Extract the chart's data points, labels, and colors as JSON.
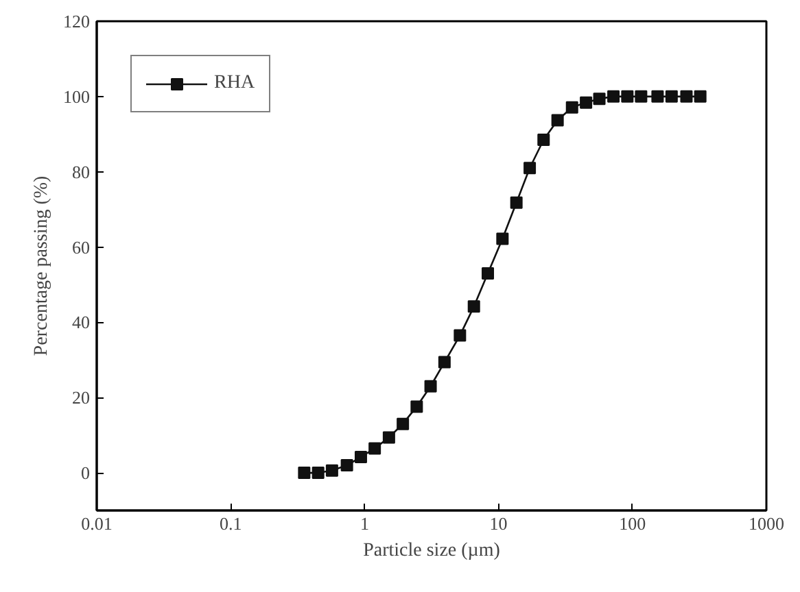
{
  "chart_data": {
    "type": "line",
    "xlabel": "Particle size (µm)",
    "ylabel": "Percentage passing (%)",
    "x": [
      0.354,
      0.45,
      0.571,
      0.738,
      0.938,
      1.19,
      1.52,
      1.93,
      2.45,
      3.11,
      3.95,
      5.15,
      6.55,
      8.32,
      10.7,
      13.6,
      17.1,
      21.7,
      27.6,
      35.4,
      45.0,
      56.6,
      72.1,
      91.6,
      116,
      154,
      196,
      253,
      321
    ],
    "series": [
      {
        "name": "RHA",
        "color": "#111111",
        "values": [
          0,
          0,
          0.6,
          2.0,
          4.2,
          6.5,
          9.4,
          13.0,
          17.6,
          23.0,
          29.4,
          36.5,
          44.2,
          53.0,
          62.2,
          71.8,
          81.0,
          88.5,
          93.7,
          97.1,
          98.4,
          99.4,
          100,
          100,
          100,
          100,
          100,
          100,
          100
        ]
      }
    ],
    "log": "x",
    "xlim": [
      0.01,
      1000
    ],
    "xticks": [
      0.01,
      0.1,
      1,
      10,
      100,
      1000
    ],
    "ylim": [
      -10,
      120
    ],
    "yticks": [
      0,
      20,
      40,
      60,
      80,
      100,
      120
    ],
    "marker": "square",
    "line_style": "solid",
    "grid": false,
    "legend": "top left"
  }
}
